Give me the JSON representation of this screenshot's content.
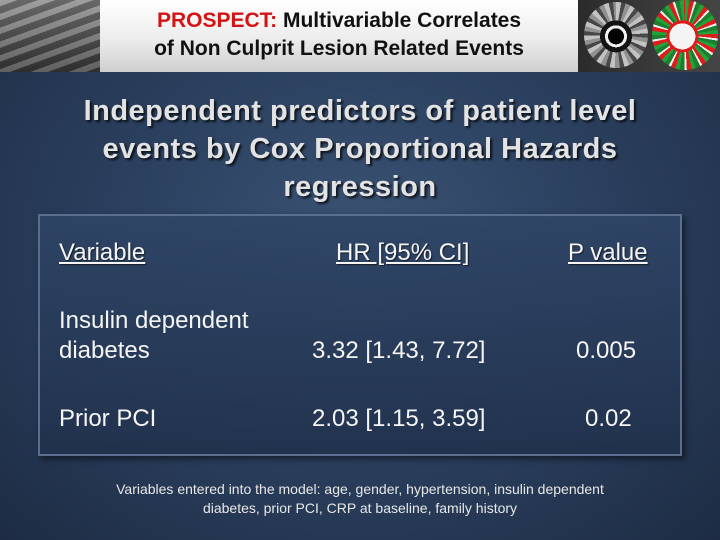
{
  "banner": {
    "title_highlight": "PROSPECT:",
    "title_rest": " Multivariable Correlates",
    "title_line2": "of Non Culprit Lesion Related Events"
  },
  "heading": {
    "line1": "Independent predictors of patient level",
    "line2": "events by Cox Proportional Hazards",
    "line3": "regression"
  },
  "table": {
    "headers": {
      "variable": "Variable",
      "hr": "HR [95% CI]",
      "p": "P value"
    },
    "rows": [
      {
        "variable_line1": "Insulin dependent",
        "variable_line2": "diabetes",
        "hr": "3.32 [1.43, 7.72]",
        "p": "0.005"
      },
      {
        "variable_line1": "Prior PCI",
        "variable_line2": "",
        "hr": "2.03 [1.15, 3.59]",
        "p": "0.02"
      }
    ]
  },
  "footnote": {
    "line1": "Variables entered into the model: age, gender, hypertension, insulin dependent",
    "line2": "diabetes, prior PCI, CRP at baseline, family history"
  },
  "colors": {
    "highlight_red": "#d41414",
    "background_blue": "#2c4160"
  },
  "images": {
    "left": "grayscale-artery-photo",
    "right_1": "ivus-grayscale-image",
    "right_2": "ivus-virtual-histology-image"
  }
}
